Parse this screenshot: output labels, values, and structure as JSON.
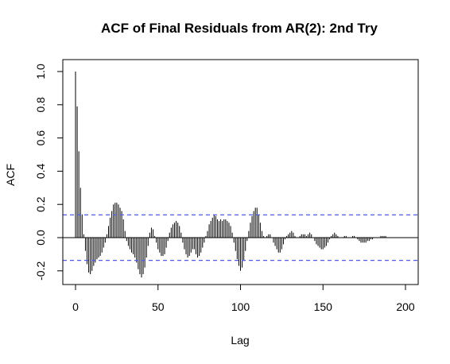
{
  "chart_data": {
    "type": "bar",
    "title": "ACF of Final Residuals from AR(2): 2nd Try",
    "xlabel": "Lag",
    "ylabel": "ACF",
    "xlim": [
      0,
      200
    ],
    "ylim": [
      -0.28,
      1.02
    ],
    "x_ticks": [
      "0",
      "50",
      "100",
      "150",
      "200"
    ],
    "y_ticks": [
      "-0.2",
      "0.0",
      "0.2",
      "0.4",
      "0.6",
      "0.8",
      "1.0"
    ],
    "confidence_bound": 0.137,
    "confidence_line_color": "#4d5de6",
    "bar_color": "#000000",
    "lags": [
      0,
      1,
      2,
      3,
      4,
      5,
      6,
      7,
      8,
      9,
      10,
      11,
      12,
      13,
      14,
      15,
      16,
      17,
      18,
      19,
      20,
      21,
      22,
      23,
      24,
      25,
      26,
      27,
      28,
      29,
      30,
      31,
      32,
      33,
      34,
      35,
      36,
      37,
      38,
      39,
      40,
      41,
      42,
      43,
      44,
      45,
      46,
      47,
      48,
      49,
      50,
      51,
      52,
      53,
      54,
      55,
      56,
      57,
      58,
      59,
      60,
      61,
      62,
      63,
      64,
      65,
      66,
      67,
      68,
      69,
      70,
      71,
      72,
      73,
      74,
      75,
      76,
      77,
      78,
      79,
      80,
      81,
      82,
      83,
      84,
      85,
      86,
      87,
      88,
      89,
      90,
      91,
      92,
      93,
      94,
      95,
      96,
      97,
      98,
      99,
      100,
      101,
      102,
      103,
      104,
      105,
      106,
      107,
      108,
      109,
      110,
      111,
      112,
      113,
      114,
      115,
      116,
      117,
      118,
      119,
      120,
      121,
      122,
      123,
      124,
      125,
      126,
      127,
      128,
      129,
      130,
      131,
      132,
      133,
      134,
      135,
      136,
      137,
      138,
      139,
      140,
      141,
      142,
      143,
      144,
      145,
      146,
      147,
      148,
      149,
      150,
      151,
      152,
      153,
      154,
      155,
      156,
      157,
      158,
      159,
      160,
      161,
      162,
      163,
      164,
      165,
      166,
      167,
      168,
      169,
      170,
      171,
      172,
      173,
      174,
      175,
      176,
      177,
      178,
      179,
      180,
      181,
      182,
      183,
      184,
      185,
      186,
      187,
      188,
      189,
      190,
      191,
      192,
      193,
      194,
      195,
      196,
      197,
      198,
      199,
      200
    ],
    "acf": [
      1.0,
      0.79,
      0.52,
      0.3,
      0.14,
      0.02,
      -0.08,
      -0.16,
      -0.21,
      -0.22,
      -0.2,
      -0.17,
      -0.15,
      -0.13,
      -0.12,
      -0.11,
      -0.09,
      -0.06,
      -0.03,
      0.02,
      0.07,
      0.12,
      0.16,
      0.2,
      0.21,
      0.21,
      0.2,
      0.18,
      0.16,
      0.11,
      0.04,
      -0.02,
      -0.05,
      -0.07,
      -0.09,
      -0.1,
      -0.12,
      -0.15,
      -0.19,
      -0.22,
      -0.24,
      -0.22,
      -0.18,
      -0.12,
      -0.05,
      0.03,
      0.06,
      0.05,
      0.01,
      -0.03,
      -0.07,
      -0.09,
      -0.11,
      -0.11,
      -0.1,
      -0.06,
      -0.02,
      0.03,
      0.06,
      0.08,
      0.09,
      0.1,
      0.09,
      0.07,
      0.03,
      -0.03,
      -0.07,
      -0.1,
      -0.12,
      -0.11,
      -0.09,
      -0.07,
      -0.07,
      -0.1,
      -0.12,
      -0.11,
      -0.09,
      -0.06,
      -0.03,
      0.01,
      0.04,
      0.08,
      0.1,
      0.12,
      0.14,
      0.13,
      0.11,
      0.1,
      0.11,
      0.1,
      0.11,
      0.11,
      0.1,
      0.09,
      0.07,
      0.03,
      -0.03,
      -0.08,
      -0.13,
      -0.17,
      -0.2,
      -0.18,
      -0.14,
      -0.08,
      -0.02,
      0.04,
      0.09,
      0.13,
      0.16,
      0.18,
      0.18,
      0.14,
      0.09,
      0.04,
      0.01,
      0.0,
      0.01,
      0.02,
      0.02,
      0.0,
      -0.03,
      -0.05,
      -0.07,
      -0.09,
      -0.09,
      -0.07,
      -0.04,
      -0.01,
      0.01,
      0.02,
      0.03,
      0.04,
      0.03,
      0.01,
      0.0,
      0.0,
      0.01,
      0.02,
      0.02,
      0.02,
      0.01,
      0.02,
      0.03,
      0.02,
      0.0,
      -0.02,
      -0.04,
      -0.05,
      -0.06,
      -0.07,
      -0.07,
      -0.06,
      -0.05,
      -0.03,
      -0.01,
      0.01,
      0.02,
      0.03,
      0.02,
      0.01,
      0.0,
      0.0,
      0.0,
      0.01,
      0.01,
      0.0,
      0.0,
      0.0,
      0.01,
      0.01,
      0.0,
      -0.01,
      -0.02,
      -0.03,
      -0.03,
      -0.03,
      -0.03,
      -0.02,
      -0.02,
      -0.01,
      -0.01,
      0.0,
      0.0,
      0.0,
      0.0,
      0.01,
      0.01,
      0.01,
      0.01,
      0.0,
      0.0,
      0.0,
      0.0,
      0.0,
      0.0,
      0.0,
      0.0,
      0.0,
      0.0,
      0.0,
      0.0
    ]
  }
}
